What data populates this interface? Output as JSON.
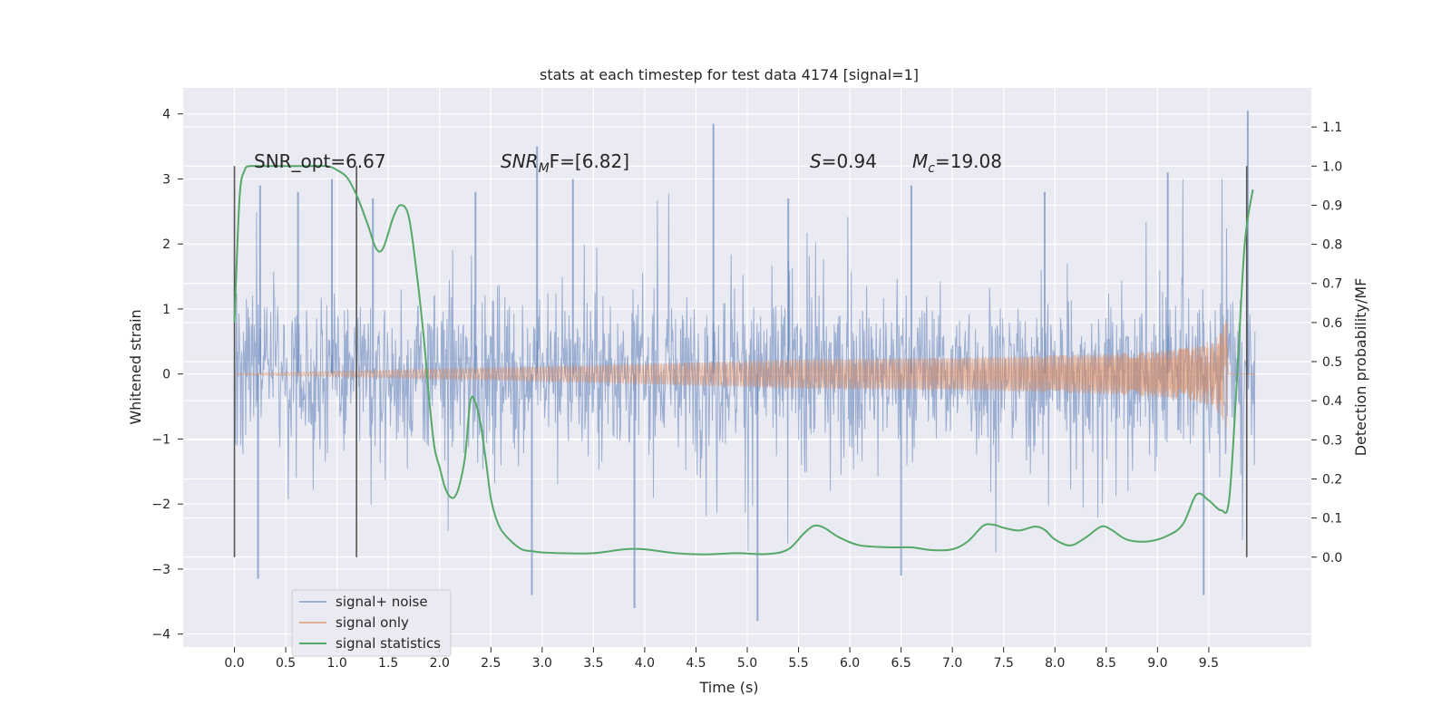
{
  "chart_data": {
    "type": "line",
    "title": "stats at each timestep for test data 4174 [signal=1]",
    "xlabel": "Time (s)",
    "ylabel_left": "Whitened strain",
    "ylabel_right": "Detection probability/MF",
    "xlim": [
      -0.5,
      10.5
    ],
    "ylim_left": [
      -4.2,
      4.4
    ],
    "ylim_right": [
      -0.23,
      1.2
    ],
    "x_ticks": [
      "0.0",
      "0.5",
      "1.0",
      "1.5",
      "2.0",
      "2.5",
      "3.0",
      "3.5",
      "4.0",
      "4.5",
      "5.0",
      "5.5",
      "6.0",
      "6.5",
      "7.0",
      "7.5",
      "8.0",
      "8.5",
      "9.0",
      "9.5"
    ],
    "y_ticks_left": [
      "−4",
      "−3",
      "−2",
      "−1",
      "0",
      "1",
      "2",
      "3",
      "4"
    ],
    "y_ticks_right": [
      "0.0",
      "0.1",
      "0.2",
      "0.3",
      "0.4",
      "0.5",
      "0.6",
      "0.7",
      "0.8",
      "0.9",
      "1.0",
      "1.1"
    ],
    "grid": true,
    "legend_position": "lower-left",
    "annotations": {
      "snr_opt": "SNR_opt=6.67",
      "snr_mf_main": "SNR",
      "snr_mf_sub": "M",
      "snr_mf_rest": "F=[6.82]",
      "s_italic": "S",
      "s_value": "=0.94",
      "mc_main": "M",
      "mc_sub": "c",
      "mc_value": "=19.08"
    },
    "vertical_markers": [
      0.0,
      1.19,
      9.87
    ],
    "series": [
      {
        "name": "signal+ noise",
        "color": "#4c72b0",
        "description_style": "dense noise band",
        "band_extent_typical": [
          -1.5,
          1.5
        ],
        "spike_peaks": [
          {
            "x": 0.25,
            "y": 2.9
          },
          {
            "x": 0.62,
            "y": 2.8
          },
          {
            "x": 0.95,
            "y": 3.0
          },
          {
            "x": 1.35,
            "y": 2.7
          },
          {
            "x": 2.35,
            "y": 2.8
          },
          {
            "x": 2.95,
            "y": 3.5
          },
          {
            "x": 3.3,
            "y": 3.0
          },
          {
            "x": 4.67,
            "y": 3.85
          },
          {
            "x": 5.4,
            "y": 2.7
          },
          {
            "x": 6.6,
            "y": 2.9
          },
          {
            "x": 7.9,
            "y": 2.8
          },
          {
            "x": 9.1,
            "y": 3.1
          },
          {
            "x": 9.88,
            "y": 4.05
          },
          {
            "x": 0.23,
            "y": -3.15
          },
          {
            "x": 2.9,
            "y": -3.4
          },
          {
            "x": 3.9,
            "y": -3.6
          },
          {
            "x": 5.1,
            "y": -3.8
          },
          {
            "x": 6.5,
            "y": -3.1
          },
          {
            "x": 9.45,
            "y": -3.4
          }
        ]
      },
      {
        "name": "signal only",
        "color": "#dd8452",
        "description_style": "chirp growing toward merger",
        "chirp_end_x": 9.68,
        "chirp_peak_amplitude": 1.3
      },
      {
        "name": "signal statistics",
        "color": "#55a868",
        "axis": "right",
        "x": [
          0.0,
          0.05,
          0.1,
          0.15,
          0.2,
          0.3,
          0.4,
          0.5,
          0.7,
          0.9,
          1.0,
          1.1,
          1.2,
          1.3,
          1.38,
          1.45,
          1.55,
          1.62,
          1.7,
          1.78,
          1.85,
          1.9,
          1.95,
          2.0,
          2.05,
          2.1,
          2.15,
          2.2,
          2.25,
          2.3,
          2.35,
          2.4,
          2.45,
          2.5,
          2.55,
          2.6,
          2.7,
          2.8,
          2.9,
          3.0,
          3.2,
          3.5,
          3.8,
          4.0,
          4.3,
          4.6,
          4.9,
          5.2,
          5.4,
          5.55,
          5.65,
          5.75,
          5.9,
          6.1,
          6.4,
          6.6,
          6.8,
          7.0,
          7.15,
          7.3,
          7.4,
          7.5,
          7.65,
          7.8,
          7.9,
          8.0,
          8.15,
          8.3,
          8.45,
          8.55,
          8.7,
          8.9,
          9.1,
          9.25,
          9.38,
          9.5,
          9.62,
          9.7,
          9.78,
          9.85,
          9.93
        ],
        "values": [
          0.6,
          0.92,
          0.99,
          1.0,
          1.0,
          1.0,
          1.0,
          1.0,
          1.0,
          1.0,
          0.99,
          0.97,
          0.92,
          0.85,
          0.79,
          0.79,
          0.87,
          0.9,
          0.87,
          0.72,
          0.55,
          0.4,
          0.28,
          0.23,
          0.18,
          0.155,
          0.155,
          0.19,
          0.26,
          0.4,
          0.395,
          0.34,
          0.25,
          0.15,
          0.1,
          0.07,
          0.04,
          0.02,
          0.015,
          0.012,
          0.01,
          0.01,
          0.02,
          0.02,
          0.01,
          0.007,
          0.01,
          0.008,
          0.02,
          0.06,
          0.08,
          0.075,
          0.05,
          0.03,
          0.025,
          0.025,
          0.018,
          0.02,
          0.04,
          0.08,
          0.083,
          0.075,
          0.068,
          0.078,
          0.07,
          0.045,
          0.03,
          0.05,
          0.078,
          0.07,
          0.045,
          0.04,
          0.055,
          0.085,
          0.16,
          0.145,
          0.12,
          0.15,
          0.48,
          0.8,
          0.94
        ]
      }
    ]
  },
  "colors": {
    "plot_background": "#eaeaf2",
    "grid": "#ffffff",
    "marker_line": "#555555"
  }
}
